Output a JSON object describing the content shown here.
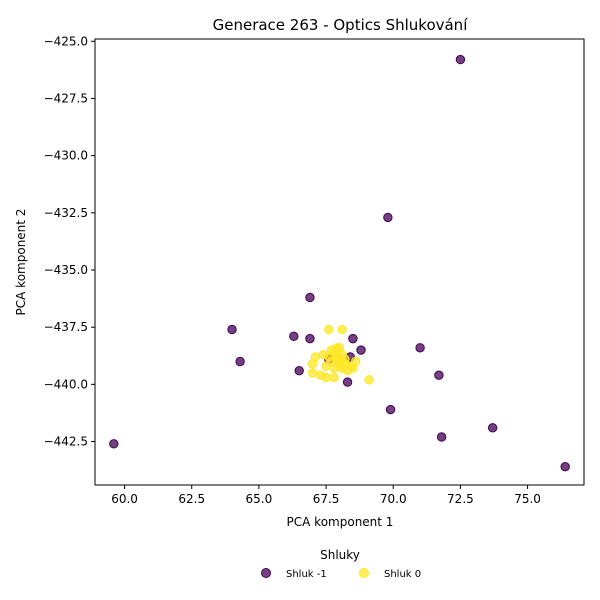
{
  "chart_data": {
    "type": "scatter",
    "title": "Generace 263 - Optics Shlukování",
    "xlabel": "PCA komponent 1",
    "ylabel": "PCA komponent 2",
    "xlim": [
      58.9,
      77.1
    ],
    "ylim": [
      -444.4,
      -424.9
    ],
    "xticks": [
      60.0,
      62.5,
      65.0,
      67.5,
      70.0,
      72.5,
      75.0
    ],
    "xtick_labels": [
      "60.0",
      "62.5",
      "65.0",
      "67.5",
      "70.0",
      "72.5",
      "75.0"
    ],
    "yticks": [
      -425.0,
      -427.5,
      -430.0,
      -432.5,
      -435.0,
      -437.5,
      -440.0,
      -442.5
    ],
    "ytick_labels": [
      "−425.0",
      "−427.5",
      "−430.0",
      "−432.5",
      "−435.0",
      "−437.5",
      "−440.0",
      "−442.5"
    ],
    "grid": false,
    "legend": {
      "title": "Shluky",
      "placement": "bottom-center"
    },
    "series": [
      {
        "name": "Shluk -1",
        "color": "#440154",
        "points": [
          [
            72.5,
            -425.8
          ],
          [
            69.8,
            -432.7
          ],
          [
            66.9,
            -436.2
          ],
          [
            64.0,
            -437.6
          ],
          [
            66.3,
            -437.9
          ],
          [
            66.9,
            -438.0
          ],
          [
            68.5,
            -438.0
          ],
          [
            71.0,
            -438.4
          ],
          [
            68.8,
            -438.5
          ],
          [
            64.3,
            -439.0
          ],
          [
            68.4,
            -438.8
          ],
          [
            67.6,
            -438.9
          ],
          [
            66.5,
            -439.4
          ],
          [
            71.7,
            -439.6
          ],
          [
            68.3,
            -439.9
          ],
          [
            69.9,
            -441.1
          ],
          [
            73.7,
            -441.9
          ],
          [
            71.8,
            -442.3
          ],
          [
            59.6,
            -442.6
          ],
          [
            76.4,
            -443.6
          ]
        ]
      },
      {
        "name": "Shluk 0",
        "color": "#fde725",
        "points": [
          [
            67.6,
            -437.6
          ],
          [
            68.1,
            -437.6
          ],
          [
            67.7,
            -438.5
          ],
          [
            67.9,
            -438.4
          ],
          [
            68.0,
            -438.4
          ],
          [
            67.8,
            -438.6
          ],
          [
            67.1,
            -438.8
          ],
          [
            67.4,
            -438.7
          ],
          [
            67.6,
            -438.8
          ],
          [
            67.9,
            -438.8
          ],
          [
            68.1,
            -438.7
          ],
          [
            68.2,
            -438.9
          ],
          [
            67.0,
            -439.1
          ],
          [
            67.5,
            -439.2
          ],
          [
            67.7,
            -439.0
          ],
          [
            68.0,
            -439.0
          ],
          [
            68.2,
            -439.1
          ],
          [
            68.4,
            -439.2
          ],
          [
            68.6,
            -439.0
          ],
          [
            68.5,
            -439.3
          ],
          [
            67.8,
            -439.3
          ],
          [
            68.1,
            -439.3
          ],
          [
            68.3,
            -439.4
          ],
          [
            67.0,
            -439.5
          ],
          [
            67.3,
            -439.6
          ],
          [
            67.5,
            -439.7
          ],
          [
            67.8,
            -439.7
          ],
          [
            69.1,
            -439.8
          ],
          [
            67.9,
            -438.9
          ],
          [
            68.0,
            -439.2
          ]
        ]
      }
    ]
  }
}
